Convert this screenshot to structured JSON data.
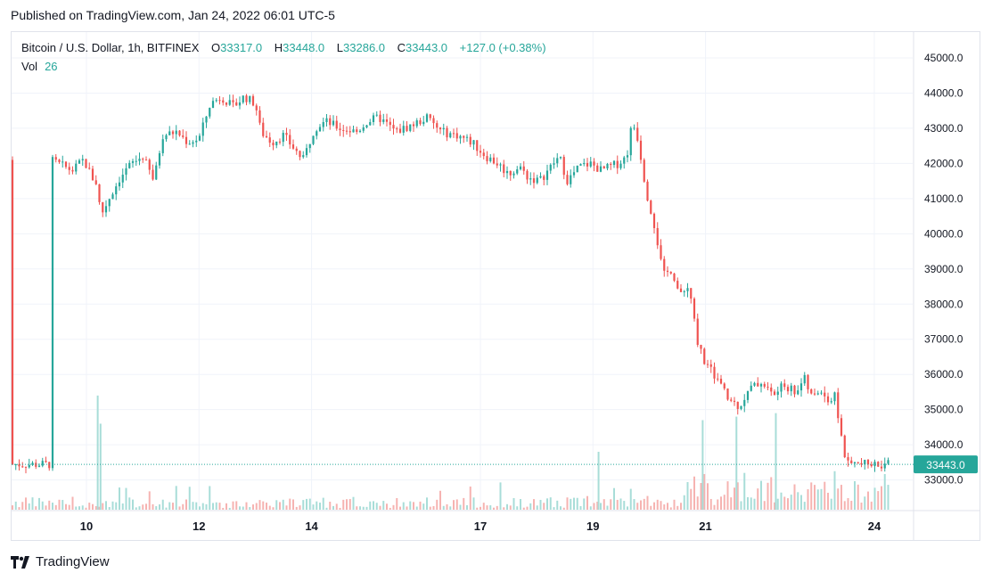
{
  "published": "Published on TradingView.com, Jan 24, 2022 06:01 UTC-5",
  "header": {
    "symbol": "Bitcoin / U.S. Dollar, 1h, BITFINEX",
    "open_label": "O",
    "open": "33317.0",
    "high_label": "H",
    "high": "33448.0",
    "low_label": "L",
    "low": "33286.0",
    "close_label": "C",
    "close": "33443.0",
    "change": "+127.0 (+0.38%)",
    "vol_label": "Vol",
    "vol": "26"
  },
  "logo_text": "TradingView",
  "colors": {
    "up": "#26a69a",
    "down": "#ef5350",
    "grid": "#f0f3fa",
    "last_price_bg": "#26a69a"
  },
  "chart_data": {
    "type": "candlestick",
    "y_ticks": [
      "45000.0",
      "44000.0",
      "43000.0",
      "42000.0",
      "41000.0",
      "40000.0",
      "39000.0",
      "38000.0",
      "37000.0",
      "36000.0",
      "35000.0",
      "34000.0",
      "33000.0"
    ],
    "ylim": [
      32200,
      45800
    ],
    "x_ticks": [
      {
        "label": "10",
        "day": 10,
        "bold": false
      },
      {
        "label": "12",
        "day": 12,
        "bold": false
      },
      {
        "label": "14",
        "day": 14,
        "bold": false
      },
      {
        "label": "17",
        "day": 17,
        "bold": true
      },
      {
        "label": "19",
        "day": 19,
        "bold": false
      },
      {
        "label": "21",
        "day": 21,
        "bold": false
      },
      {
        "label": "24",
        "day": 24,
        "bold": true
      }
    ],
    "x_start": "2022-01-09 09:00",
    "x_end": "2022-01-24 06:00",
    "last_price": "33443.0",
    "close_path": [
      [
        9.35,
        42100
      ],
      [
        9.55,
        41950
      ],
      [
        9.75,
        41800
      ],
      [
        9.95,
        42100
      ],
      [
        10.1,
        41600
      ],
      [
        10.2,
        41400
      ],
      [
        10.25,
        40500
      ],
      [
        10.4,
        41000
      ],
      [
        10.6,
        41600
      ],
      [
        10.8,
        42000
      ],
      [
        11.0,
        42200
      ],
      [
        11.2,
        41500
      ],
      [
        11.35,
        42800
      ],
      [
        11.6,
        42900
      ],
      [
        11.8,
        42600
      ],
      [
        12.0,
        42700
      ],
      [
        12.2,
        43700
      ],
      [
        12.4,
        43900
      ],
      [
        12.6,
        43600
      ],
      [
        12.8,
        43900
      ],
      [
        13.0,
        43700
      ],
      [
        13.1,
        42900
      ],
      [
        13.3,
        42600
      ],
      [
        13.5,
        42800
      ],
      [
        13.7,
        42400
      ],
      [
        13.85,
        42100
      ],
      [
        14.05,
        43000
      ],
      [
        14.25,
        43200
      ],
      [
        14.5,
        43000
      ],
      [
        14.8,
        42900
      ],
      [
        15.0,
        43200
      ],
      [
        15.2,
        43300
      ],
      [
        15.5,
        42900
      ],
      [
        15.8,
        43100
      ],
      [
        16.05,
        43300
      ],
      [
        16.3,
        42900
      ],
      [
        16.6,
        42800
      ],
      [
        16.85,
        42600
      ],
      [
        17.1,
        42200
      ],
      [
        17.3,
        42000
      ],
      [
        17.5,
        41700
      ],
      [
        17.7,
        41900
      ],
      [
        17.85,
        41600
      ],
      [
        18.05,
        41500
      ],
      [
        18.2,
        41800
      ],
      [
        18.4,
        42200
      ],
      [
        18.55,
        41500
      ],
      [
        18.75,
        41900
      ],
      [
        18.95,
        42000
      ],
      [
        19.15,
        41800
      ],
      [
        19.3,
        41900
      ],
      [
        19.45,
        42000
      ],
      [
        19.6,
        42200
      ],
      [
        19.7,
        43200
      ],
      [
        19.8,
        42700
      ],
      [
        19.95,
        41200
      ],
      [
        20.1,
        40200
      ],
      [
        20.25,
        38800
      ],
      [
        20.4,
        39000
      ],
      [
        20.55,
        38200
      ],
      [
        20.7,
        38500
      ],
      [
        20.85,
        37000
      ],
      [
        21.0,
        36300
      ],
      [
        21.2,
        35900
      ],
      [
        21.4,
        35300
      ],
      [
        21.6,
        35100
      ],
      [
        21.8,
        35600
      ],
      [
        22.0,
        35800
      ],
      [
        22.2,
        35400
      ],
      [
        22.4,
        35700
      ],
      [
        22.6,
        35500
      ],
      [
        22.75,
        35900
      ],
      [
        22.9,
        35300
      ],
      [
        23.05,
        35600
      ],
      [
        23.2,
        35200
      ],
      [
        23.3,
        35400
      ],
      [
        23.42,
        34200
      ],
      [
        23.5,
        33443
      ]
    ],
    "vol_spikes": [
      [
        10.2,
        35400
      ],
      [
        10.25,
        34600
      ],
      [
        20.95,
        34700
      ],
      [
        21.55,
        34800
      ],
      [
        22.25,
        34900
      ],
      [
        19.1,
        33800
      ]
    ]
  }
}
